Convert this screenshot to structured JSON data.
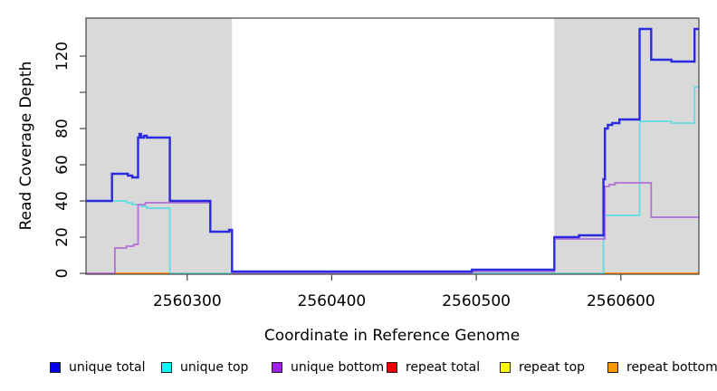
{
  "chart_data": {
    "type": "line",
    "title": "",
    "xlabel": "Coordinate in Reference Genome",
    "ylabel": "Read Coverage Depth",
    "xlim": [
      2560230,
      2560654
    ],
    "ylim": [
      0,
      141
    ],
    "grid": false,
    "legend_position": "bottom",
    "shade_color": "#d9d9d9",
    "axis_color": "#444444",
    "shaded_regions": [
      {
        "x1": 2560230,
        "x2": 2560331
      },
      {
        "x1": 2560554,
        "x2": 2560654
      }
    ],
    "xticks": [
      {
        "v": 2560300,
        "label": "2560300"
      },
      {
        "v": 2560400,
        "label": "2560400"
      },
      {
        "v": 2560500,
        "label": "2560500"
      },
      {
        "v": 2560600,
        "label": "2560600"
      }
    ],
    "yticks": [
      {
        "v": 0,
        "label": "0"
      },
      {
        "v": 20,
        "label": "20"
      },
      {
        "v": 40,
        "label": "40"
      },
      {
        "v": 60,
        "label": "60"
      },
      {
        "v": 80,
        "label": "80"
      },
      {
        "v": 100,
        "label": ""
      },
      {
        "v": 120,
        "label": "120"
      }
    ],
    "series": [
      {
        "name": "unique total",
        "swatch_color": "#0000ee",
        "line_color": "#2a2ae0",
        "lw": 2.4,
        "z": 6,
        "steps": [
          [
            2560230,
            40
          ],
          [
            2560248,
            55
          ],
          [
            2560259,
            54
          ],
          [
            2560262,
            53
          ],
          [
            2560266,
            75
          ],
          [
            2560267,
            77
          ],
          [
            2560268,
            75
          ],
          [
            2560270,
            76
          ],
          [
            2560272,
            75
          ],
          [
            2560288,
            40
          ],
          [
            2560316,
            23
          ],
          [
            2560329,
            24
          ],
          [
            2560331,
            1
          ],
          [
            2560497,
            2
          ],
          [
            2560554,
            20
          ],
          [
            2560571,
            21
          ],
          [
            2560588,
            52
          ],
          [
            2560589,
            80
          ],
          [
            2560591,
            82
          ],
          [
            2560594,
            83
          ],
          [
            2560599,
            85
          ],
          [
            2560613,
            135
          ],
          [
            2560621,
            118
          ],
          [
            2560635,
            117
          ],
          [
            2560651,
            135
          ]
        ]
      },
      {
        "name": "unique top",
        "swatch_color": "#00ffff",
        "line_color": "#5fdde5",
        "lw": 1.8,
        "z": 4,
        "steps": [
          [
            2560230,
            40
          ],
          [
            2560258,
            39
          ],
          [
            2560262,
            38
          ],
          [
            2560268,
            37
          ],
          [
            2560272,
            36
          ],
          [
            2560288,
            0
          ],
          [
            2560588,
            32
          ],
          [
            2560613,
            84
          ],
          [
            2560635,
            83
          ],
          [
            2560651,
            103
          ]
        ]
      },
      {
        "name": "unique bottom",
        "swatch_color": "#a020f0",
        "line_color": "#b46fd6",
        "lw": 1.8,
        "z": 5,
        "steps": [
          [
            2560230,
            0
          ],
          [
            2560250,
            14
          ],
          [
            2560258,
            15
          ],
          [
            2560263,
            16
          ],
          [
            2560266,
            38
          ],
          [
            2560271,
            39
          ],
          [
            2560316,
            23
          ],
          [
            2560331,
            0
          ],
          [
            2560497,
            1
          ],
          [
            2560554,
            19
          ],
          [
            2560589,
            48
          ],
          [
            2560592,
            49
          ],
          [
            2560596,
            50
          ],
          [
            2560621,
            31
          ]
        ]
      },
      {
        "name": "repeat total",
        "swatch_color": "#ee0000",
        "line_color": "#e00000",
        "lw": 1.5,
        "z": 1,
        "steps": [
          [
            2560230,
            0
          ]
        ]
      },
      {
        "name": "repeat top",
        "swatch_color": "#ffff00",
        "line_color": "#ffe800",
        "lw": 1.5,
        "z": 2,
        "steps": [
          [
            2560230,
            0
          ]
        ]
      },
      {
        "name": "repeat bottom",
        "swatch_color": "#ff9900",
        "line_color": "#ff9400",
        "lw": 2,
        "z": 3,
        "steps": [
          [
            2560230,
            0
          ]
        ]
      }
    ]
  }
}
